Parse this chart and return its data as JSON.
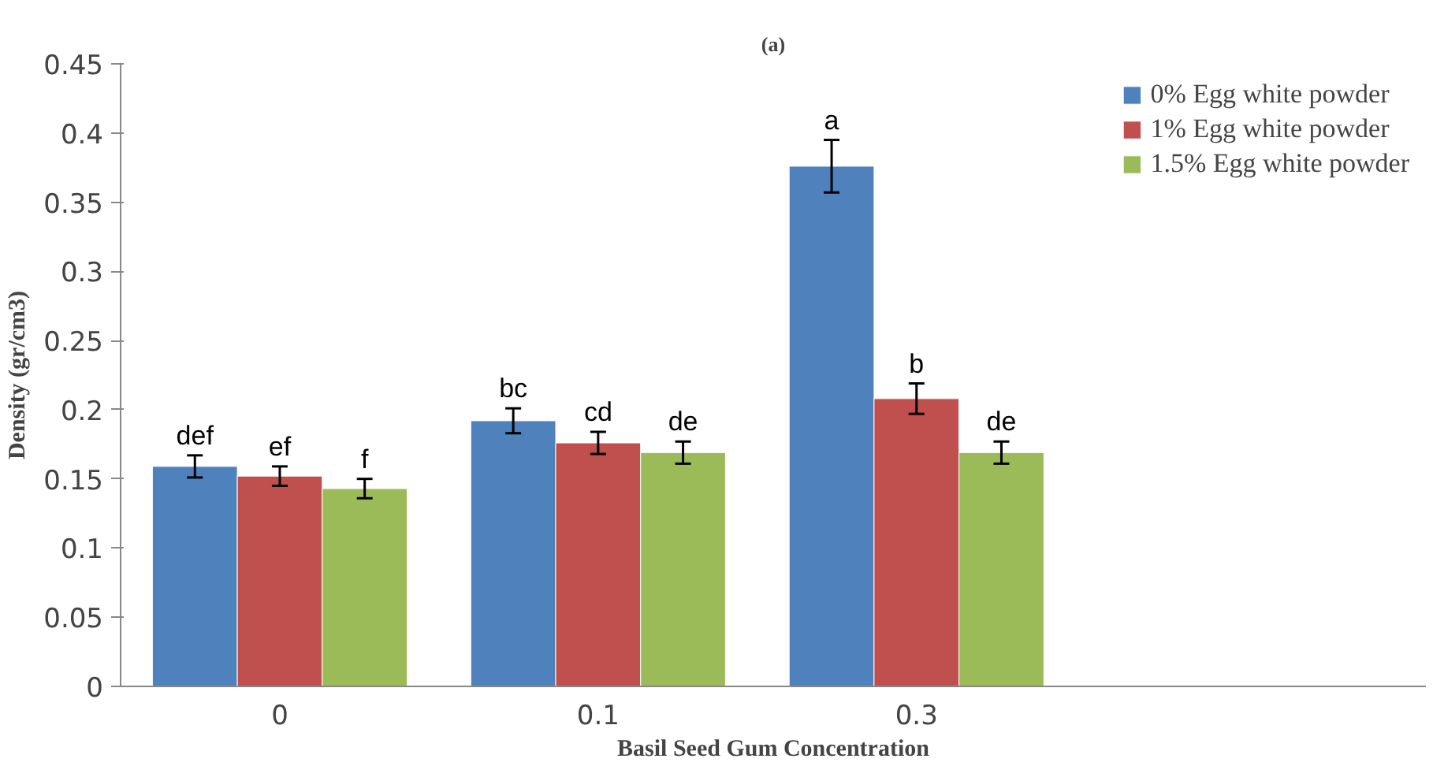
{
  "chart_data": {
    "type": "bar",
    "title": "(a)",
    "xlabel": "Basil Seed Gum Concentration",
    "ylabel": "Density (gr/cm3)",
    "categories": [
      "0",
      "0.1",
      "0.3"
    ],
    "series": [
      {
        "name": "0% Egg white powder",
        "color": "#4f81bd",
        "values": [
          0.159,
          0.192,
          0.376
        ],
        "errors": [
          0.008,
          0.009,
          0.019
        ],
        "value_labels": [
          "def",
          "bc",
          "a"
        ]
      },
      {
        "name": "1% Egg white powder",
        "color": "#c0504d",
        "values": [
          0.152,
          0.176,
          0.208
        ],
        "errors": [
          0.007,
          0.008,
          0.011
        ],
        "value_labels": [
          "ef",
          "cd",
          "b"
        ]
      },
      {
        "name": "1.5% Egg white powder",
        "color": "#9bbb59",
        "values": [
          0.143,
          0.169,
          0.169
        ],
        "errors": [
          0.007,
          0.008,
          0.008
        ],
        "value_labels": [
          "f",
          "de",
          "de"
        ]
      }
    ],
    "ylim": [
      0,
      0.45
    ],
    "yticks": [
      0,
      0.05,
      0.1,
      0.15,
      0.2,
      0.25,
      0.3,
      0.35,
      0.4,
      0.45
    ],
    "grid": false,
    "legend": "top right"
  }
}
